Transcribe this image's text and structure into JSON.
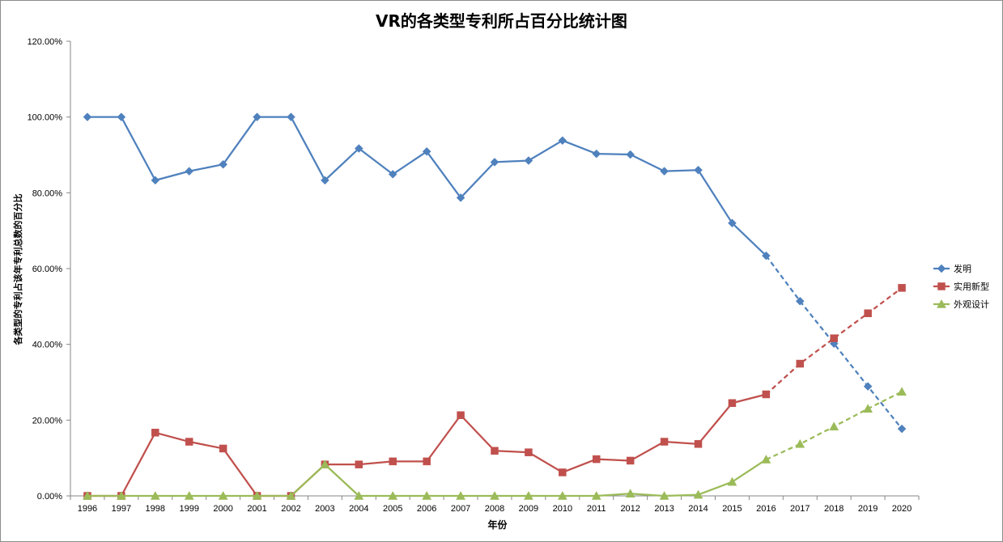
{
  "chart_data": {
    "type": "line",
    "title": "VR的各类型专利所占百分比统计图",
    "xlabel": "年份",
    "ylabel": "各类型的专利占该年专利总数的百分比",
    "categories": [
      "1996",
      "1997",
      "1998",
      "1999",
      "2000",
      "2001",
      "2002",
      "2003",
      "2004",
      "2005",
      "2006",
      "2007",
      "2008",
      "2009",
      "2010",
      "2011",
      "2012",
      "2013",
      "2014",
      "2015",
      "2016",
      "2017",
      "2018",
      "2019",
      "2020"
    ],
    "ylim": [
      0,
      1.2
    ],
    "yticks": [
      "0.00%",
      "20.00%",
      "40.00%",
      "60.00%",
      "80.00%",
      "100.00%",
      "120.00%"
    ],
    "forecast_start_index": 20,
    "legend_position": "right",
    "series": [
      {
        "name": "发明",
        "color": "#4f81bd",
        "marker": "diamond",
        "values": [
          1.0,
          1.0,
          0.833,
          0.857,
          0.875,
          1.0,
          1.0,
          0.833,
          0.917,
          0.849,
          0.909,
          0.787,
          0.881,
          0.885,
          0.938,
          0.903,
          0.901,
          0.857,
          0.86,
          0.72,
          0.634,
          0.514,
          0.402,
          0.289,
          0.177
        ]
      },
      {
        "name": "实用新型",
        "color": "#c0504d",
        "marker": "square",
        "values": [
          0.0,
          0.0,
          0.167,
          0.143,
          0.125,
          0.0,
          0.0,
          0.083,
          0.083,
          0.091,
          0.091,
          0.213,
          0.119,
          0.115,
          0.062,
          0.097,
          0.093,
          0.143,
          0.137,
          0.245,
          0.268,
          0.349,
          0.416,
          0.482,
          0.549
        ]
      },
      {
        "name": "外观设计",
        "color": "#9bbb59",
        "marker": "triangle",
        "values": [
          0.0,
          0.0,
          0.0,
          0.0,
          0.0,
          0.0,
          0.0,
          0.083,
          0.0,
          0.0,
          0.0,
          0.0,
          0.0,
          0.0,
          0.0,
          0.0,
          0.006,
          0.0,
          0.003,
          0.037,
          0.096,
          0.137,
          0.183,
          0.23,
          0.275
        ]
      }
    ]
  }
}
